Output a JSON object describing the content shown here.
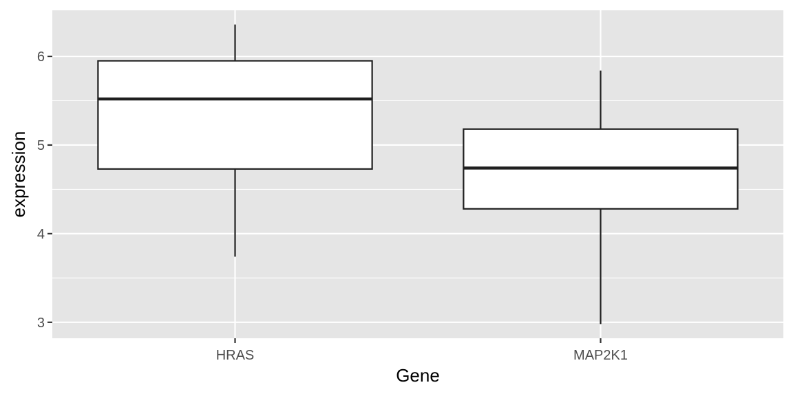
{
  "chart_data": {
    "type": "boxplot",
    "title": "",
    "xlabel": "Gene",
    "ylabel": "expression",
    "ylim": [
      2.82,
      6.52
    ],
    "yticks": [
      3,
      4,
      5,
      6
    ],
    "grid": true,
    "legend": "none",
    "categories": [
      "HRAS",
      "MAP2K1"
    ],
    "boxes": [
      {
        "category": "HRAS",
        "whisker_low": 3.74,
        "q1": 4.73,
        "median": 5.52,
        "q3": 5.95,
        "whisker_high": 6.36
      },
      {
        "category": "MAP2K1",
        "whisker_low": 2.98,
        "q1": 4.28,
        "median": 4.74,
        "q3": 5.18,
        "whisker_high": 5.84
      }
    ],
    "colors": {
      "panel": "#e5e5e5",
      "grid": "#ffffff",
      "box_fill": "#ffffff",
      "box_stroke": "#1f1f1f",
      "tick_text": "#4d4d4d",
      "axis_title": "#000000"
    }
  }
}
